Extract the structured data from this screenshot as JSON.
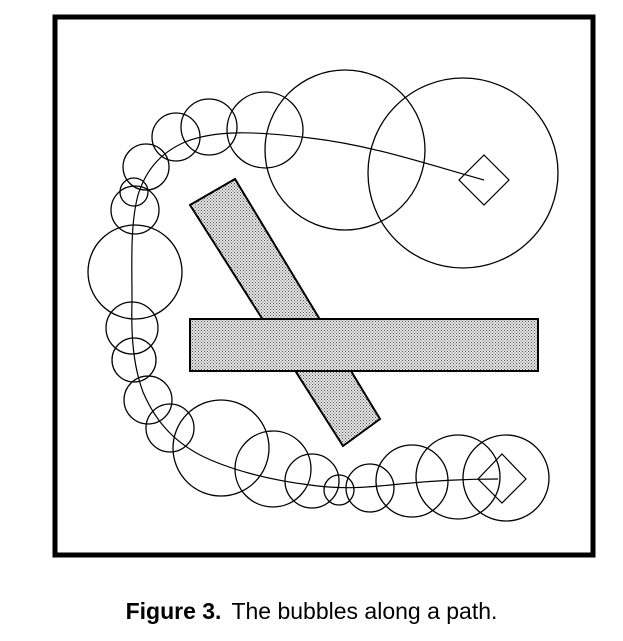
{
  "figure": {
    "caption_label": "Figure 3.",
    "caption_text": "The bubbles along a path.",
    "colors": {
      "stroke": "#000000",
      "obstacle_fill": "#c8c8c8",
      "background": "#ffffff"
    },
    "elements": {
      "frame": "border",
      "obstacle": "cross-shaped obstacle",
      "path": "curved path",
      "bubbles": "circles along path",
      "start": "diamond marker",
      "goal": "diamond marker"
    }
  }
}
